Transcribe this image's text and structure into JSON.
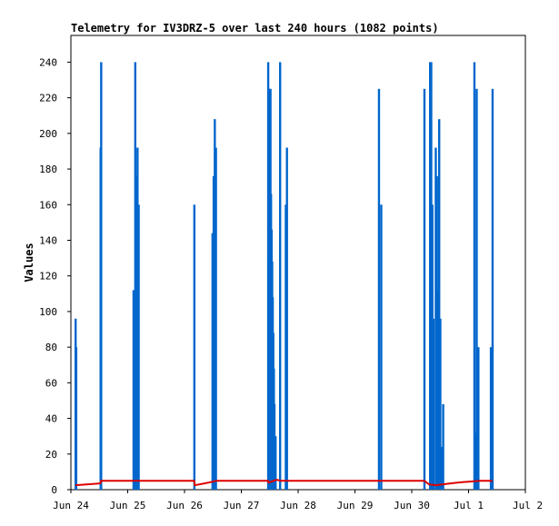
{
  "chart_data": {
    "type": "bar",
    "title": "Telemetry for IV3DRZ-5 over last 240 hours (1082 points)",
    "xlabel": "",
    "ylabel": "Values",
    "x_ticks": [
      "Jun 24",
      "Jun 25",
      "Jun 26",
      "Jun 27",
      "Jun 28",
      "Jun 29",
      "Jun 30",
      "Jul 1",
      "Jul 2"
    ],
    "x_range_days": [
      0,
      8
    ],
    "ylim": [
      0,
      255
    ],
    "y_ticks": [
      0,
      20,
      40,
      60,
      80,
      100,
      120,
      140,
      160,
      180,
      200,
      220,
      240
    ],
    "grid": false,
    "series": [
      {
        "color": "#0066cc",
        "style": "bars",
        "points": [
          [
            0.08,
            96
          ],
          [
            0.09,
            80
          ],
          [
            0.52,
            192
          ],
          [
            0.53,
            240
          ],
          [
            1.1,
            112
          ],
          [
            1.13,
            240
          ],
          [
            1.15,
            176
          ],
          [
            1.17,
            192
          ],
          [
            1.19,
            160
          ],
          [
            2.17,
            160
          ],
          [
            2.49,
            144
          ],
          [
            2.51,
            176
          ],
          [
            2.53,
            208
          ],
          [
            2.55,
            192
          ],
          [
            3.47,
            240
          ],
          [
            3.48,
            225
          ],
          [
            3.5,
            225
          ],
          [
            3.51,
            225
          ],
          [
            3.52,
            166
          ],
          [
            3.53,
            146
          ],
          [
            3.54,
            128
          ],
          [
            3.55,
            108
          ],
          [
            3.56,
            88
          ],
          [
            3.57,
            68
          ],
          [
            3.58,
            48
          ],
          [
            3.6,
            30
          ],
          [
            3.68,
            240
          ],
          [
            3.78,
            160
          ],
          [
            3.8,
            192
          ],
          [
            5.42,
            225
          ],
          [
            5.46,
            160
          ],
          [
            6.22,
            225
          ],
          [
            6.32,
            240
          ],
          [
            6.34,
            240
          ],
          [
            6.36,
            160
          ],
          [
            6.38,
            96
          ],
          [
            6.42,
            192
          ],
          [
            6.44,
            176
          ],
          [
            6.46,
            112
          ],
          [
            6.48,
            208
          ],
          [
            6.5,
            96
          ],
          [
            6.52,
            24
          ],
          [
            6.55,
            48
          ],
          [
            7.1,
            240
          ],
          [
            7.12,
            32
          ],
          [
            7.14,
            225
          ],
          [
            7.17,
            80
          ],
          [
            7.39,
            80
          ],
          [
            7.42,
            225
          ]
        ]
      },
      {
        "color": "#dd0000",
        "style": "line",
        "points": [
          [
            0.08,
            2.5
          ],
          [
            0.3,
            3.0
          ],
          [
            0.52,
            3.5
          ],
          [
            0.53,
            5
          ],
          [
            2.17,
            5
          ],
          [
            2.18,
            2.5
          ],
          [
            2.35,
            3.5
          ],
          [
            2.5,
            4.5
          ],
          [
            2.55,
            5
          ],
          [
            3.47,
            5
          ],
          [
            3.48,
            4.0
          ],
          [
            3.62,
            5.5
          ],
          [
            3.7,
            5
          ],
          [
            6.22,
            5
          ],
          [
            6.3,
            3.0
          ],
          [
            6.42,
            2.5
          ],
          [
            6.55,
            3.0
          ],
          [
            6.8,
            4.0
          ],
          [
            7.0,
            4.5
          ],
          [
            7.2,
            5
          ],
          [
            7.42,
            5
          ]
        ]
      }
    ]
  }
}
